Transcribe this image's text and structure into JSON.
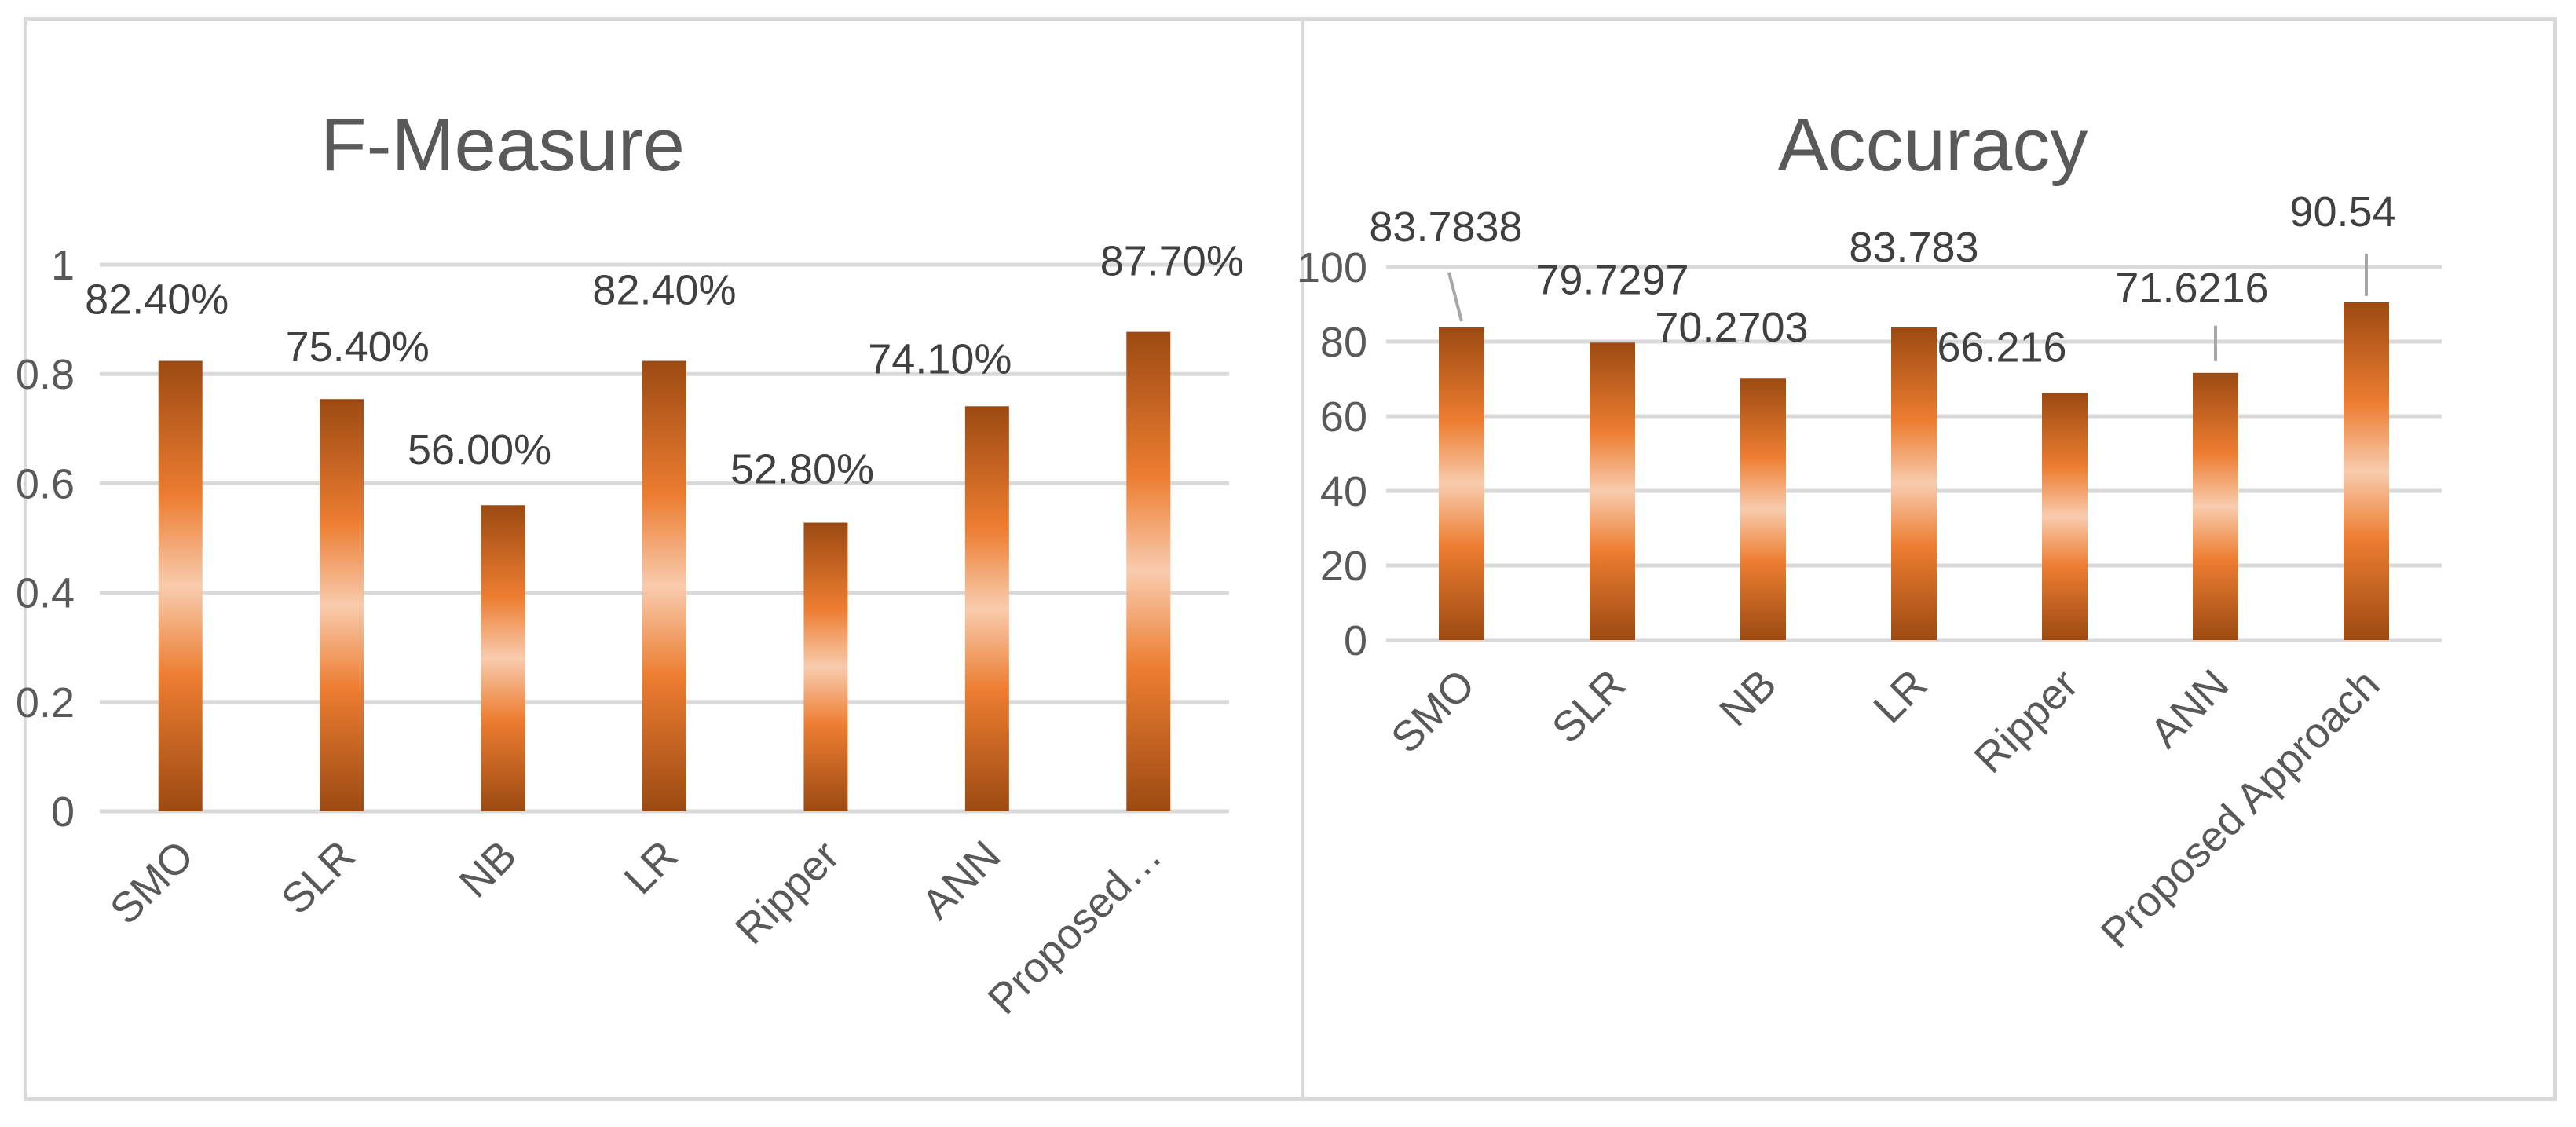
{
  "charts": [
    {
      "type": "bar",
      "title": "F-Measure",
      "categories": [
        "SMO",
        "SLR",
        "NB",
        "LR",
        "Ripper",
        "ANN",
        "Proposed…"
      ],
      "values": [
        0.824,
        0.754,
        0.56,
        0.824,
        0.528,
        0.741,
        0.877
      ],
      "data_labels": [
        "82.40%",
        "75.40%",
        "56.00%",
        "82.40%",
        "52.80%",
        "74.10%",
        "87.70%"
      ],
      "yticks": [
        "0",
        "0.2",
        "0.4",
        "0.6",
        "0.8",
        "1"
      ],
      "ylim": [
        0,
        1
      ],
      "xlabel": "",
      "ylabel": "",
      "grid": true,
      "legend": "none"
    },
    {
      "type": "bar",
      "title": "Accuracy",
      "categories": [
        "SMO",
        "SLR",
        "NB",
        "LR",
        "Ripper",
        "ANN",
        "Proposed Approach"
      ],
      "values": [
        83.7838,
        79.7297,
        70.2703,
        83.783,
        66.216,
        71.6216,
        90.54
      ],
      "data_labels": [
        "83.7838",
        "79.7297",
        "70.2703",
        "83.783",
        "66.216",
        "71.6216",
        "90.54"
      ],
      "yticks": [
        "0",
        "20",
        "40",
        "60",
        "80",
        "100"
      ],
      "ylim": [
        0,
        100
      ],
      "xlabel": "",
      "ylabel": "",
      "grid": true,
      "legend": "none"
    }
  ],
  "colors": {
    "bar_dark": "#9c4a12",
    "bar_mid": "#ed7d31",
    "bar_light": "#f8cbad"
  }
}
